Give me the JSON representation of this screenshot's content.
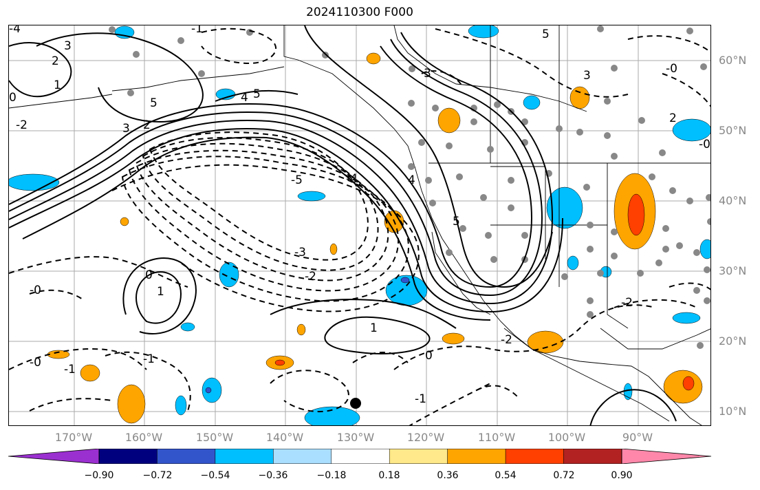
{
  "title": "2024110300 F000",
  "longitude_labels": [
    "170°W",
    "160°W",
    "150°W",
    "140°W",
    "130°W",
    "120°W",
    "110°W",
    "100°W",
    "90°W"
  ],
  "latitude_labels": [
    "60°N",
    "50°N",
    "40°N",
    "30°N",
    "20°N",
    "10°N"
  ],
  "colorbar": {
    "tick_labels": [
      "−0.90",
      "−0.72",
      "−0.54",
      "−0.36",
      "−0.18",
      "0.18",
      "0.36",
      "0.54",
      "0.72",
      "0.90"
    ],
    "colors": [
      "#9b30d0",
      "#00007f",
      "#3355cc",
      "#00bfff",
      "#aadfff",
      "#ffffff",
      "#ffe98a",
      "#ffa500",
      "#ff4000",
      "#b22222",
      "#ff88aa"
    ]
  },
  "contour_labels": {
    "l1": "3",
    "l2": "2",
    "l3": "1",
    "l4": "0",
    "l5": "-4",
    "l6": "-2",
    "l7": "5",
    "l8": "4",
    "l9": "5",
    "l10": "3",
    "l11": "2",
    "l12": "-5",
    "l13": "-4",
    "l14": "-3",
    "l15": "-2",
    "l16": "-1",
    "l17": "-0",
    "l18": "1",
    "l19": "0",
    "l20": "-2",
    "l21": "-1",
    "l22": "-1",
    "l23": "-0",
    "l24": "3",
    "l25": "4",
    "l26": "5",
    "l27": "5",
    "l28": "3",
    "l29": "-2",
    "l30": "-0",
    "l31": "-1",
    "l32": "2",
    "l33": "-0",
    "l34": "0",
    "l35": "1"
  },
  "colors": {
    "contour": "#000000",
    "grid": "#aaaaaa",
    "stations": "#888888",
    "coast": "#000000"
  }
}
